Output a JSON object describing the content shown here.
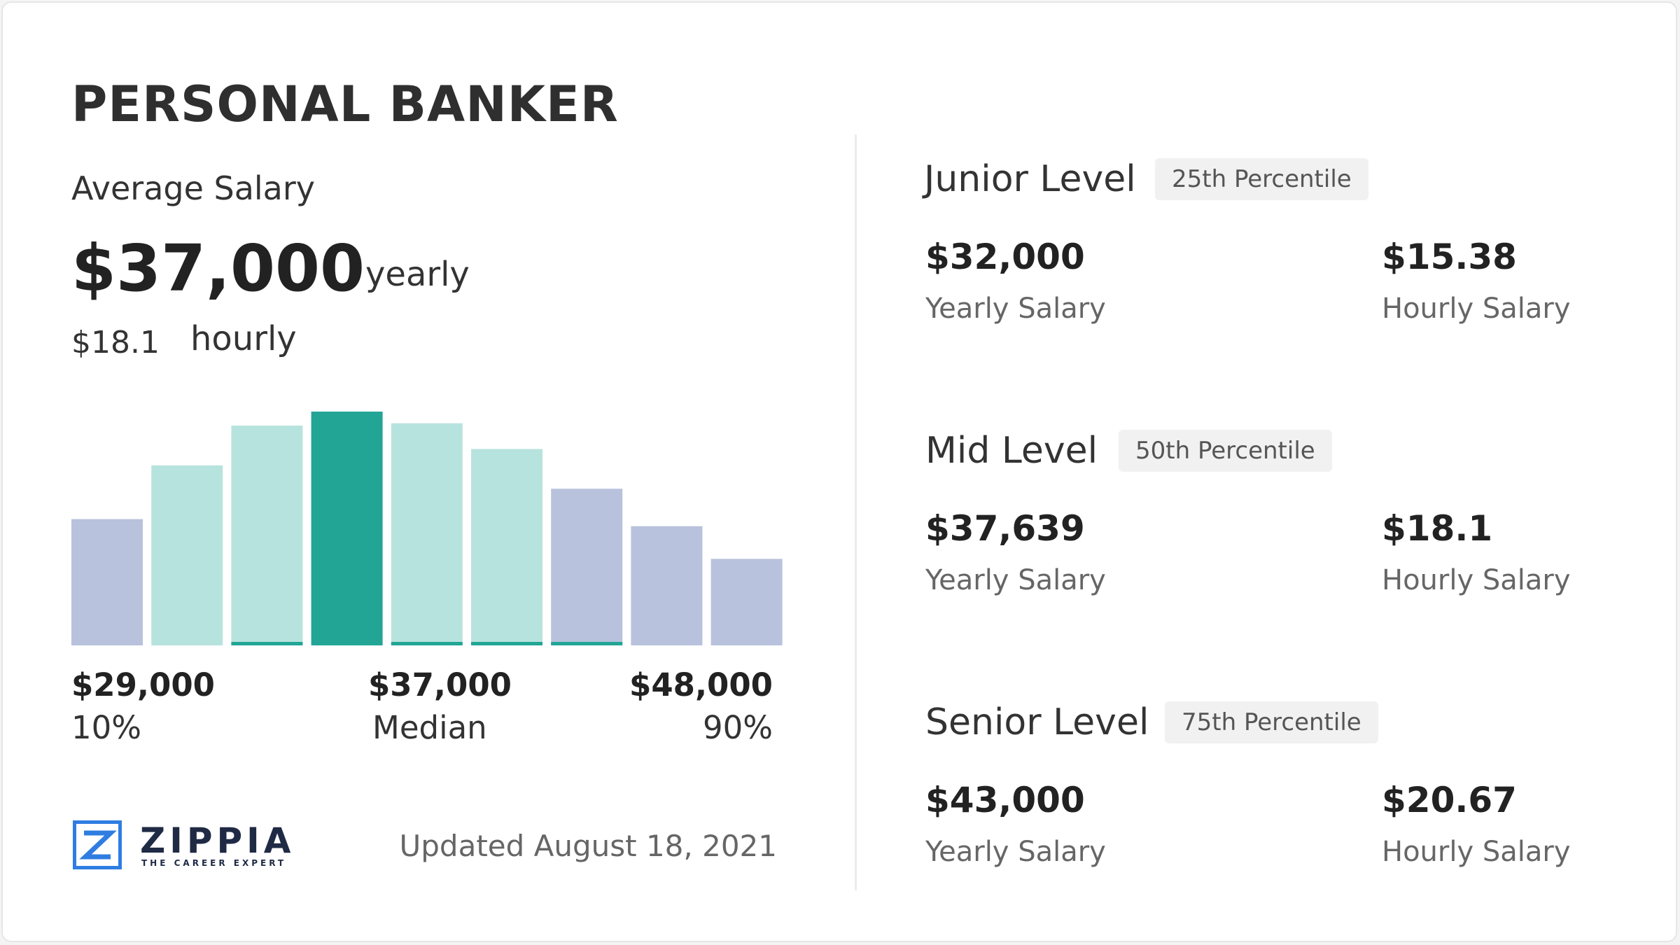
{
  "title": "PERSONAL BANKER",
  "average": {
    "label": "Average Salary",
    "yearly_value": "$37,000",
    "yearly_unit": "yearly",
    "hourly_value": "$18.1",
    "hourly_unit": "hourly"
  },
  "chart_data": {
    "type": "bar",
    "title": "",
    "xlabel": "",
    "ylabel": "",
    "values": [
      0.54,
      0.77,
      0.94,
      1.0,
      0.95,
      0.84,
      0.67,
      0.51,
      0.37
    ],
    "highlight_index": 3,
    "bar_colors": [
      "#b8c2dc",
      "#b7e3df",
      "#b7e3df",
      "#22a595",
      "#b7e3df",
      "#b7e3df",
      "#b8c2dc",
      "#b8c2dc",
      "#b8c2dc"
    ],
    "baseline_accent": [
      false,
      false,
      true,
      false,
      true,
      true,
      true,
      false,
      false
    ],
    "x_labels": [
      {
        "value": "$29,000",
        "label": "10%"
      },
      {
        "value": "$37,000",
        "label": "Median"
      },
      {
        "value": "$48,000",
        "label": "90%"
      }
    ]
  },
  "colors": {
    "accent": "#22a595",
    "light_teal": "#b7e3df",
    "lavender": "#b8c2dc",
    "logo_blue": "#2f7de1"
  },
  "footer": {
    "logo_word": "ZIPPIA",
    "logo_tagline": "THE CAREER EXPERT",
    "logo_icon": "zippia-z-icon",
    "updated": "Updated August 18, 2021"
  },
  "levels": [
    {
      "name": "Junior Level",
      "percentile": "25th Percentile",
      "yearly": "$32,000",
      "yearly_label": "Yearly Salary",
      "hourly": "$15.38",
      "hourly_label": "Hourly Salary"
    },
    {
      "name": "Mid Level",
      "percentile": "50th Percentile",
      "yearly": "$37,639",
      "yearly_label": "Yearly Salary",
      "hourly": "$18.1",
      "hourly_label": "Hourly Salary"
    },
    {
      "name": "Senior Level",
      "percentile": "75th Percentile",
      "yearly": "$43,000",
      "yearly_label": "Yearly Salary",
      "hourly": "$20.67",
      "hourly_label": "Hourly Salary"
    }
  ]
}
